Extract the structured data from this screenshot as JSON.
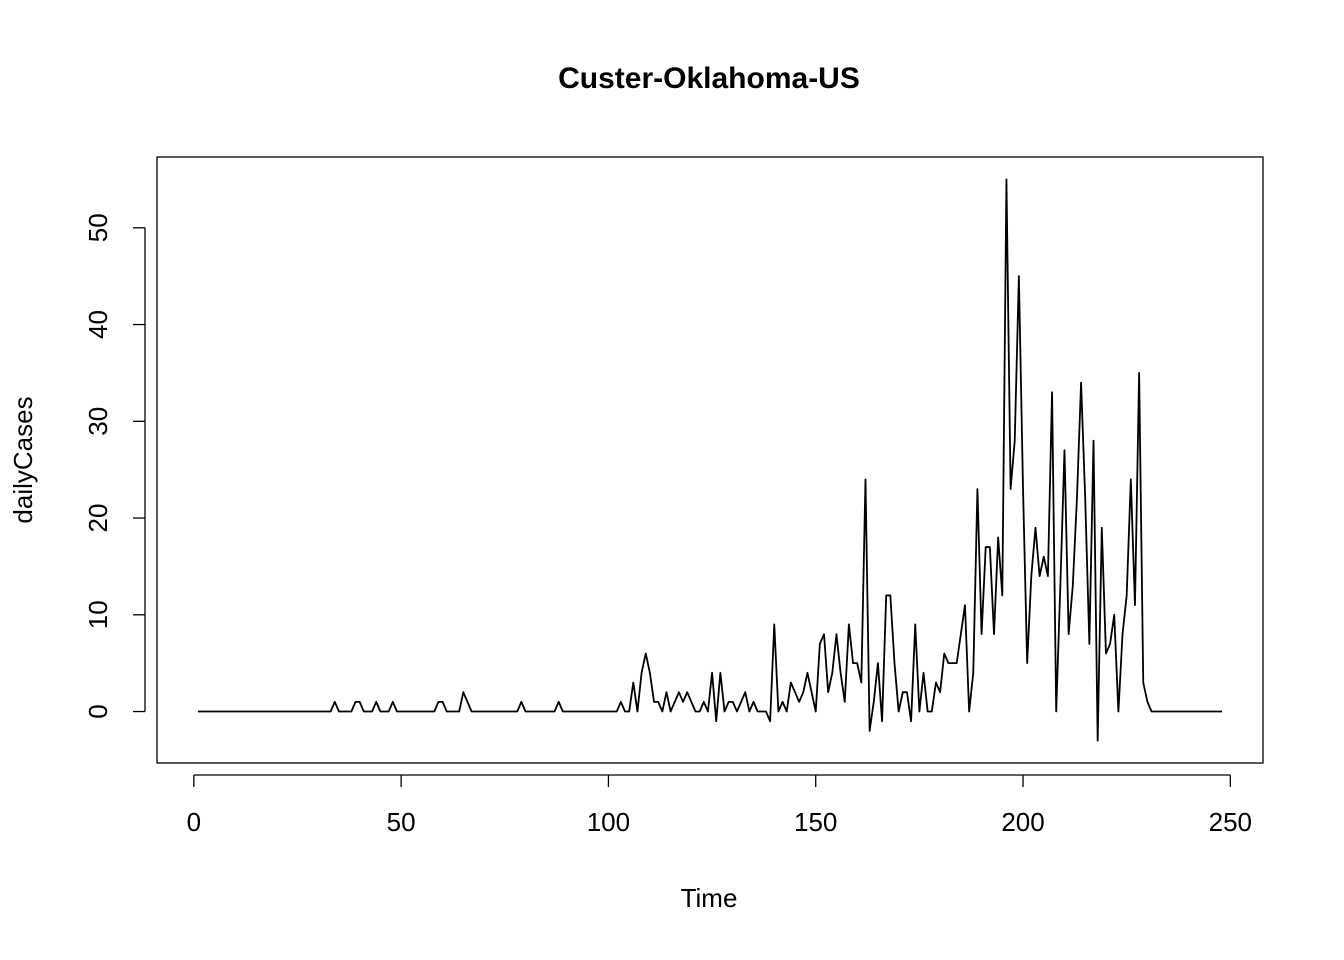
{
  "chart_data": {
    "type": "line",
    "title": "Custer-Oklahoma-US",
    "x_label": "Time",
    "y_label": "dailyCases",
    "x": [
      1,
      2,
      3,
      4,
      5,
      6,
      7,
      8,
      9,
      10,
      11,
      12,
      13,
      14,
      15,
      16,
      17,
      18,
      19,
      20,
      21,
      22,
      23,
      24,
      25,
      26,
      27,
      28,
      29,
      30,
      31,
      32,
      33,
      34,
      35,
      36,
      37,
      38,
      39,
      40,
      41,
      42,
      43,
      44,
      45,
      46,
      47,
      48,
      49,
      50,
      51,
      52,
      53,
      54,
      55,
      56,
      57,
      58,
      59,
      60,
      61,
      62,
      63,
      64,
      65,
      66,
      67,
      68,
      69,
      70,
      71,
      72,
      73,
      74,
      75,
      76,
      77,
      78,
      79,
      80,
      81,
      82,
      83,
      84,
      85,
      86,
      87,
      88,
      89,
      90,
      91,
      92,
      93,
      94,
      95,
      96,
      97,
      98,
      99,
      100,
      101,
      102,
      103,
      104,
      105,
      106,
      107,
      108,
      109,
      110,
      111,
      112,
      113,
      114,
      115,
      116,
      117,
      118,
      119,
      120,
      121,
      122,
      123,
      124,
      125,
      126,
      127,
      128,
      129,
      130,
      131,
      132,
      133,
      134,
      135,
      136,
      137,
      138,
      139,
      140,
      141,
      142,
      143,
      144,
      145,
      146,
      147,
      148,
      149,
      150,
      151,
      152,
      153,
      154,
      155,
      156,
      157,
      158,
      159,
      160,
      161,
      162,
      163,
      164,
      165,
      166,
      167,
      168,
      169,
      170,
      171,
      172,
      173,
      174,
      175,
      176,
      177,
      178,
      179,
      180,
      181,
      182,
      183,
      184,
      185,
      186,
      187,
      188,
      189,
      190,
      191,
      192,
      193,
      194,
      195,
      196,
      197,
      198,
      199,
      200,
      201,
      202,
      203,
      204,
      205,
      206,
      207,
      208,
      209,
      210,
      211,
      212,
      213,
      214,
      215,
      216,
      217,
      218,
      219,
      220,
      221,
      222,
      223,
      224,
      225,
      226,
      227,
      228,
      229,
      230,
      231,
      232,
      233,
      234,
      235,
      236,
      237,
      238,
      239,
      240,
      241,
      242,
      243,
      244,
      245,
      246,
      247,
      248
    ],
    "values": [
      0,
      0,
      0,
      0,
      0,
      0,
      0,
      0,
      0,
      0,
      0,
      0,
      0,
      0,
      0,
      0,
      0,
      0,
      0,
      0,
      0,
      0,
      0,
      0,
      0,
      0,
      0,
      0,
      0,
      0,
      0,
      0,
      0,
      1,
      0,
      0,
      0,
      0,
      1,
      1,
      0,
      0,
      0,
      1,
      0,
      0,
      0,
      1,
      0,
      0,
      0,
      0,
      0,
      0,
      0,
      0,
      0,
      0,
      1,
      1,
      0,
      0,
      0,
      0,
      2,
      1,
      0,
      0,
      0,
      0,
      0,
      0,
      0,
      0,
      0,
      0,
      0,
      0,
      1,
      0,
      0,
      0,
      0,
      0,
      0,
      0,
      0,
      1,
      0,
      0,
      0,
      0,
      0,
      0,
      0,
      0,
      0,
      0,
      0,
      0,
      0,
      0,
      1,
      0,
      0,
      3,
      0,
      4,
      6,
      4,
      1,
      1,
      0,
      2,
      0,
      1,
      2,
      1,
      2,
      1,
      0,
      0,
      1,
      0,
      4,
      -1,
      4,
      0,
      1,
      1,
      0,
      1,
      2,
      0,
      1,
      0,
      0,
      0,
      -1,
      9,
      0,
      1,
      0,
      3,
      2,
      1,
      2,
      4,
      2,
      0,
      7,
      8,
      2,
      4,
      8,
      4,
      1,
      9,
      5,
      5,
      3,
      24,
      -2,
      1,
      5,
      -1,
      12,
      12,
      5,
      0,
      2,
      2,
      -1,
      9,
      0,
      4,
      0,
      0,
      3,
      2,
      6,
      5,
      5,
      5,
      8,
      11,
      0,
      4,
      23,
      8,
      17,
      17,
      8,
      18,
      12,
      55,
      23,
      28,
      45,
      23,
      5,
      14,
      19,
      14,
      16,
      14,
      33,
      0,
      13,
      27,
      8,
      13,
      22,
      34,
      22,
      7,
      28,
      -3,
      19,
      6,
      7,
      10,
      0,
      8,
      12,
      24,
      11,
      35,
      3,
      1,
      0,
      0,
      0,
      0,
      0,
      0,
      0,
      0,
      0,
      0,
      0,
      0,
      0,
      0,
      0,
      0,
      0,
      0
    ],
    "color": "#000000",
    "xlim": [
      -8.88,
      257.88
    ],
    "xticks": [
      0,
      50,
      100,
      150,
      200,
      250
    ],
    "ylim": [
      -5.32,
      57.32
    ],
    "yticks": [
      0,
      10,
      20,
      30,
      40,
      50
    ],
    "grid": false
  }
}
